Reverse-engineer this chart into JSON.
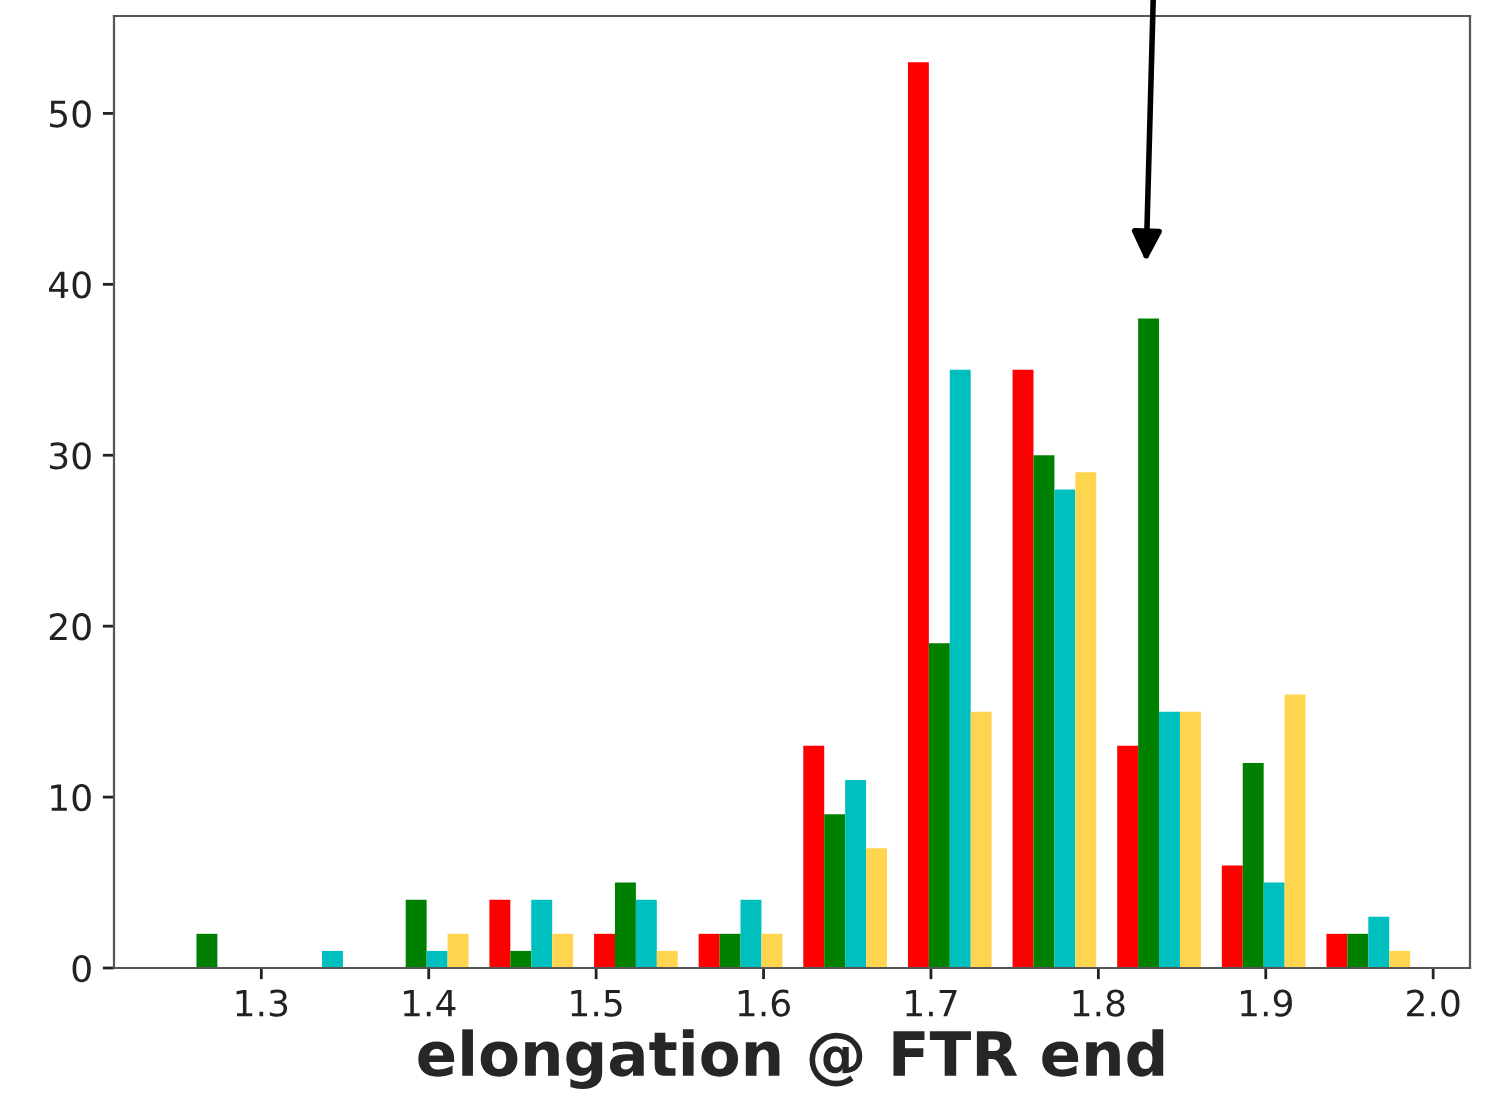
{
  "chart_data": {
    "type": "histogram",
    "xlabel": "elongation @ FTR end",
    "bins": [
      1.2425,
      1.305,
      1.3675,
      1.43,
      1.4925,
      1.555,
      1.6175,
      1.68,
      1.7425,
      1.805,
      1.8675,
      1.93,
      1.9925
    ],
    "series": [
      {
        "color": "#ff0000",
        "values": [
          0,
          0,
          0,
          4,
          2,
          2,
          13,
          53,
          35,
          13,
          6,
          2
        ]
      },
      {
        "color": "#008000",
        "values": [
          2,
          0,
          4,
          1,
          5,
          2,
          9,
          19,
          30,
          38,
          12,
          2
        ]
      },
      {
        "color": "#00bfbf",
        "values": [
          0,
          1,
          1,
          4,
          4,
          4,
          11,
          35,
          28,
          15,
          5,
          3
        ]
      },
      {
        "color": "#ffd54f",
        "values": [
          0,
          0,
          2,
          2,
          1,
          2,
          7,
          15,
          29,
          15,
          16,
          1
        ]
      }
    ],
    "xlim": [
      1.212,
      2.022
    ],
    "ylim": [
      0,
      55.7
    ],
    "xticks": [
      1.3,
      1.4,
      1.5,
      1.6,
      1.7,
      1.8,
      1.9,
      {
        "value": 2.0,
        "label": "2.0"
      }
    ],
    "yticks": [
      0,
      10,
      20,
      30,
      40,
      50
    ],
    "grid": false,
    "legend": false
  }
}
